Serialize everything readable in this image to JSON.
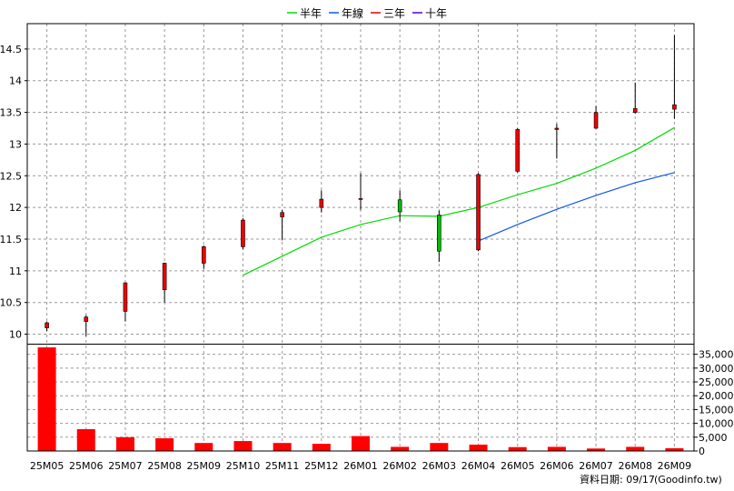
{
  "chart_data": {
    "type": "candlestick",
    "months": [
      "25M05",
      "25M06",
      "25M07",
      "25M08",
      "25M09",
      "25M10",
      "25M11",
      "25M12",
      "26M01",
      "26M02",
      "26M03",
      "26M04",
      "26M05",
      "26M06",
      "26M07",
      "26M08",
      "26M09"
    ],
    "candles": [
      {
        "o": 10.1,
        "h": 10.2,
        "l": 10.05,
        "c": 10.18
      },
      {
        "o": 10.2,
        "h": 10.3,
        "l": 9.97,
        "c": 10.27
      },
      {
        "o": 10.36,
        "h": 10.82,
        "l": 10.2,
        "c": 10.81
      },
      {
        "o": 10.7,
        "h": 11.13,
        "l": 10.5,
        "c": 11.12
      },
      {
        "o": 11.12,
        "h": 11.4,
        "l": 11.03,
        "c": 11.38
      },
      {
        "o": 11.38,
        "h": 11.83,
        "l": 11.34,
        "c": 11.8
      },
      {
        "o": 11.85,
        "h": 11.96,
        "l": 11.48,
        "c": 11.92
      },
      {
        "o": 12.0,
        "h": 12.27,
        "l": 11.92,
        "c": 12.13
      },
      {
        "o": 12.13,
        "h": 12.54,
        "l": 11.96,
        "c": 12.14
      },
      {
        "o": 12.12,
        "h": 12.27,
        "l": 11.78,
        "c": 11.93
      },
      {
        "o": 11.88,
        "h": 11.95,
        "l": 11.14,
        "c": 11.31
      },
      {
        "o": 11.33,
        "h": 12.54,
        "l": 11.31,
        "c": 12.52
      },
      {
        "o": 12.57,
        "h": 13.25,
        "l": 12.55,
        "c": 13.23
      },
      {
        "o": 13.23,
        "h": 13.32,
        "l": 12.77,
        "c": 13.25
      },
      {
        "o": 13.25,
        "h": 13.6,
        "l": 13.24,
        "c": 13.5
      },
      {
        "o": 13.5,
        "h": 13.97,
        "l": 13.48,
        "c": 13.56
      },
      {
        "o": 13.55,
        "h": 14.72,
        "l": 13.4,
        "c": 13.62
      }
    ],
    "volume": [
      37500,
      7900,
      5000,
      4600,
      2900,
      3600,
      2900,
      2600,
      5400,
      1500,
      2900,
      2300,
      1400,
      1500,
      900,
      1500,
      1000
    ],
    "series": [
      {
        "name": "半年",
        "color": "#00dd00",
        "start": 5,
        "values": [
          10.93,
          11.23,
          11.53,
          11.73,
          11.87,
          11.86,
          12.0,
          12.2,
          12.38,
          12.62,
          12.9,
          13.26
        ]
      },
      {
        "name": "年線",
        "color": "#1155ee",
        "start": 11,
        "values": [
          11.47,
          11.73,
          11.97,
          12.19,
          12.39,
          12.55
        ]
      },
      {
        "name": "三年",
        "color": "#ee0000",
        "start": 0,
        "values": []
      },
      {
        "name": "十年",
        "color": "#5500cc",
        "start": 0,
        "values": []
      }
    ],
    "price_ticks": [
      10,
      10.5,
      11,
      11.5,
      12,
      12.5,
      13,
      13.5,
      14,
      14.5
    ],
    "price_tick_labels": [
      "10",
      "10.5",
      "11",
      "11.5",
      "12",
      "12.5",
      "13",
      "13.5",
      "14",
      "14.5"
    ],
    "ylim_price": [
      9.85,
      14.9
    ],
    "volume_ticks": [
      0,
      5000,
      10000,
      15000,
      20000,
      25000,
      30000,
      35000
    ],
    "volume_tick_labels": [
      "0",
      "5,000",
      "10,000",
      "15,000",
      "20,000",
      "25,000",
      "30,000",
      "35,000"
    ],
    "ylim_volume": [
      0,
      38500
    ],
    "up_color": "#ee0000",
    "down_color": "#00bb00",
    "volume_color": "#ff0000"
  },
  "footer": {
    "date_label": "資料日期: 09/17",
    "source": "(Goodinfo.tw)"
  }
}
